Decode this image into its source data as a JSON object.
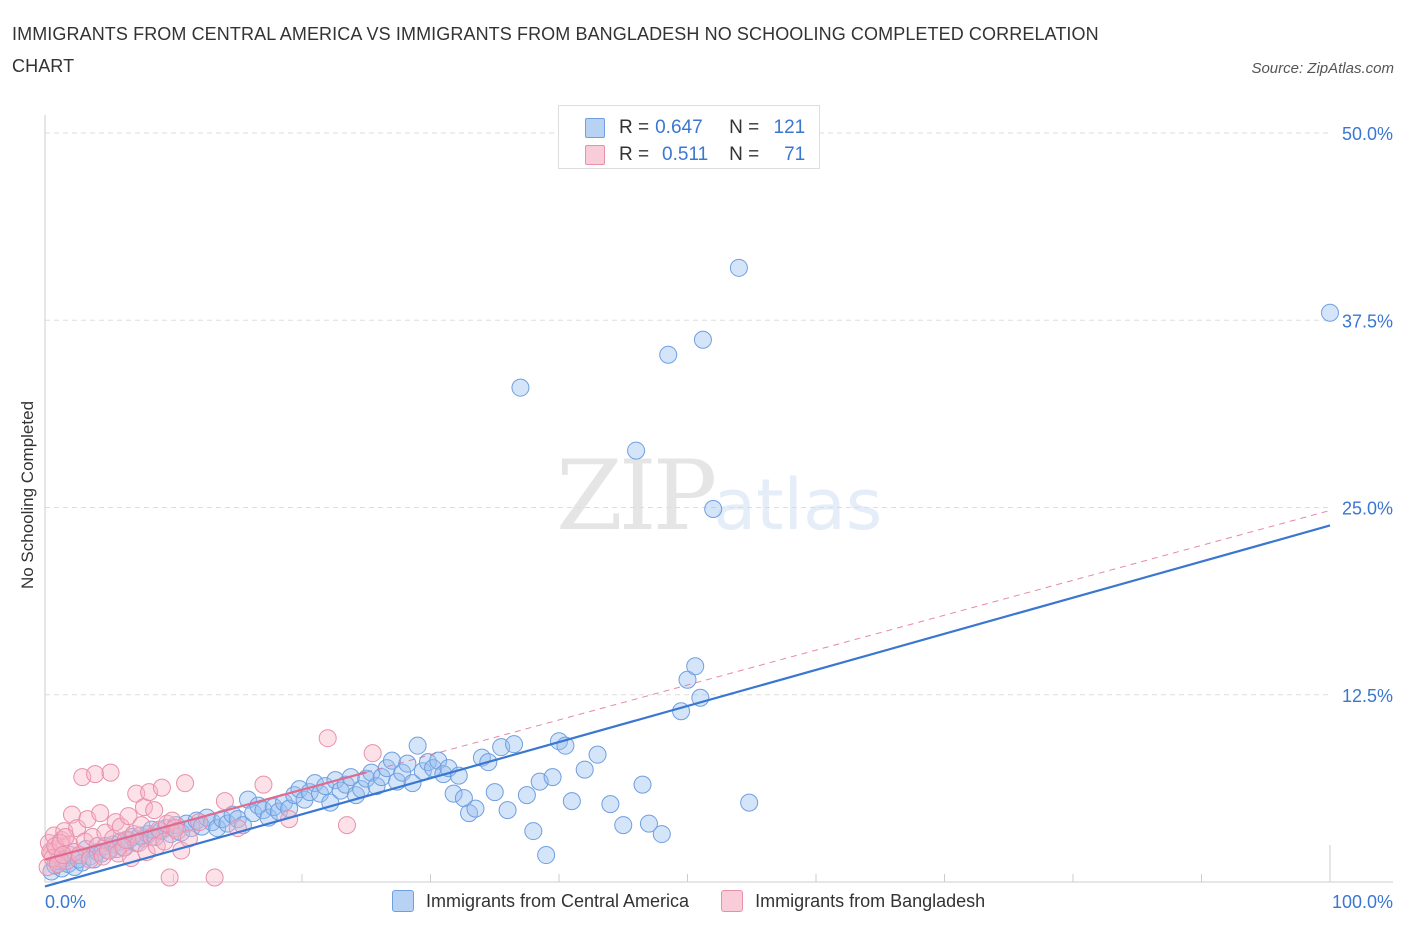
{
  "title": "IMMIGRANTS FROM CENTRAL AMERICA VS IMMIGRANTS FROM BANGLADESH NO SCHOOLING COMPLETED CORRELATION CHART",
  "source": "Source: ZipAtlas.com",
  "watermark": {
    "zip": "ZIP",
    "atlas": "atlas"
  },
  "stats": [
    {
      "r_label": "R =",
      "r": "0.647",
      "n_label": "N =",
      "n": "121",
      "color": "#a8c8f0",
      "border": "#6f9fe0"
    },
    {
      "r_label": "R =",
      "r": "0.511",
      "n_label": "N =",
      "n": "71",
      "color": "#f8c0d0",
      "border": "#e890aa"
    }
  ],
  "chart_data": {
    "type": "scatter",
    "ylabel": "No Schooling Completed",
    "xlim": [
      0,
      100
    ],
    "ylim": [
      0,
      50
    ],
    "x_tick_labels": [
      {
        "value": 0,
        "label": "0.0%"
      },
      {
        "value": 100,
        "label": "100.0%"
      }
    ],
    "y_tick_labels": [
      {
        "value": 12.5,
        "label": "12.5%"
      },
      {
        "value": 25,
        "label": "25.0%"
      },
      {
        "value": 37.5,
        "label": "37.5%"
      },
      {
        "value": 50,
        "label": "50.0%"
      }
    ],
    "grid": true,
    "legend_position": "bottom",
    "series": [
      {
        "name": "Immigrants from Central America",
        "color": "#6f9fe0",
        "fill": "rgba(150,190,240,0.40)",
        "trend": {
          "x": [
            0,
            100
          ],
          "y": [
            -0.3,
            23.8
          ],
          "style": "solid",
          "color": "#3a77d0"
        },
        "points": [
          [
            0.5,
            0.7
          ],
          [
            0.8,
            1.1
          ],
          [
            1.0,
            1.4
          ],
          [
            1.3,
            0.9
          ],
          [
            1.5,
            1.6
          ],
          [
            1.8,
            1.2
          ],
          [
            2.0,
            1.8
          ],
          [
            2.3,
            1.0
          ],
          [
            2.6,
            1.5
          ],
          [
            2.9,
            1.3
          ],
          [
            3.2,
            2.2
          ],
          [
            3.5,
            1.7
          ],
          [
            3.8,
            1.5
          ],
          [
            4.1,
            2.0
          ],
          [
            4.4,
            1.9
          ],
          [
            4.7,
            2.4
          ],
          [
            5.0,
            2.1
          ],
          [
            5.3,
            2.5
          ],
          [
            5.6,
            2.2
          ],
          [
            5.9,
            2.7
          ],
          [
            6.2,
            2.3
          ],
          [
            6.5,
            2.8
          ],
          [
            6.8,
            3.0
          ],
          [
            7.1,
            2.6
          ],
          [
            7.4,
            3.1
          ],
          [
            7.7,
            2.9
          ],
          [
            8.0,
            3.2
          ],
          [
            8.3,
            3.5
          ],
          [
            8.6,
            3.0
          ],
          [
            9.0,
            3.4
          ],
          [
            9.4,
            3.6
          ],
          [
            9.8,
            3.2
          ],
          [
            10.2,
            3.8
          ],
          [
            10.6,
            3.3
          ],
          [
            11.0,
            3.9
          ],
          [
            11.4,
            3.6
          ],
          [
            11.8,
            4.1
          ],
          [
            12.2,
            3.7
          ],
          [
            12.6,
            4.3
          ],
          [
            13.0,
            4.0
          ],
          [
            13.4,
            3.6
          ],
          [
            13.8,
            4.2
          ],
          [
            14.2,
            3.9
          ],
          [
            14.6,
            4.5
          ],
          [
            15.0,
            4.2
          ],
          [
            15.4,
            3.8
          ],
          [
            15.8,
            5.5
          ],
          [
            16.2,
            4.6
          ],
          [
            16.6,
            5.1
          ],
          [
            17.0,
            4.8
          ],
          [
            17.4,
            4.3
          ],
          [
            17.8,
            5.0
          ],
          [
            18.2,
            4.7
          ],
          [
            18.6,
            5.3
          ],
          [
            19.0,
            4.9
          ],
          [
            19.4,
            5.8
          ],
          [
            19.8,
            6.2
          ],
          [
            20.2,
            5.5
          ],
          [
            20.6,
            6.0
          ],
          [
            21.0,
            6.6
          ],
          [
            21.4,
            5.9
          ],
          [
            21.8,
            6.4
          ],
          [
            22.2,
            5.3
          ],
          [
            22.6,
            6.8
          ],
          [
            23.0,
            6.1
          ],
          [
            23.4,
            6.5
          ],
          [
            23.8,
            7.0
          ],
          [
            24.2,
            5.8
          ],
          [
            24.6,
            6.2
          ],
          [
            25.0,
            6.9
          ],
          [
            25.4,
            7.3
          ],
          [
            25.8,
            6.4
          ],
          [
            26.2,
            7.0
          ],
          [
            26.6,
            7.6
          ],
          [
            27.0,
            8.1
          ],
          [
            27.4,
            6.7
          ],
          [
            27.8,
            7.3
          ],
          [
            28.2,
            7.9
          ],
          [
            28.6,
            6.6
          ],
          [
            29.0,
            9.1
          ],
          [
            29.4,
            7.4
          ],
          [
            29.8,
            8.0
          ],
          [
            30.2,
            7.6
          ],
          [
            30.6,
            8.1
          ],
          [
            31.0,
            7.2
          ],
          [
            31.4,
            7.6
          ],
          [
            31.8,
            5.9
          ],
          [
            32.2,
            7.1
          ],
          [
            32.6,
            5.6
          ],
          [
            33.0,
            4.6
          ],
          [
            33.5,
            4.9
          ],
          [
            34.0,
            8.3
          ],
          [
            34.5,
            8.0
          ],
          [
            35.0,
            6.0
          ],
          [
            35.5,
            9.0
          ],
          [
            36.0,
            4.8
          ],
          [
            36.5,
            9.2
          ],
          [
            37.0,
            33.0
          ],
          [
            37.5,
            5.8
          ],
          [
            38.0,
            3.4
          ],
          [
            38.5,
            6.7
          ],
          [
            39.0,
            1.8
          ],
          [
            39.5,
            7.0
          ],
          [
            40.0,
            9.4
          ],
          [
            40.5,
            9.1
          ],
          [
            41.0,
            5.4
          ],
          [
            42.0,
            7.5
          ],
          [
            43.0,
            8.5
          ],
          [
            44.0,
            5.2
          ],
          [
            45.0,
            3.8
          ],
          [
            46.0,
            28.8
          ],
          [
            46.5,
            6.5
          ],
          [
            47.0,
            3.9
          ],
          [
            48.0,
            3.2
          ],
          [
            48.5,
            35.2
          ],
          [
            49.5,
            11.4
          ],
          [
            50.0,
            13.5
          ],
          [
            50.6,
            14.4
          ],
          [
            51.0,
            12.3
          ],
          [
            51.2,
            36.2
          ],
          [
            52.0,
            24.9
          ],
          [
            54.0,
            41.0
          ],
          [
            54.8,
            5.3
          ],
          [
            100.0,
            38.0
          ]
        ]
      },
      {
        "name": "Immigrants from Bangladesh",
        "color": "#e890aa",
        "fill": "rgba(248,180,200,0.40)",
        "trend": {
          "x": [
            0,
            100
          ],
          "y": [
            1.5,
            24.8
          ],
          "solid_until": 25,
          "style": "dashed-after",
          "color": "#e06b90"
        },
        "points": [
          [
            0.3,
            2.6
          ],
          [
            0.5,
            1.9
          ],
          [
            0.7,
            3.1
          ],
          [
            0.9,
            2.2
          ],
          [
            1.1,
            1.6
          ],
          [
            1.3,
            2.8
          ],
          [
            1.5,
            3.4
          ],
          [
            1.7,
            1.4
          ],
          [
            1.9,
            2.5
          ],
          [
            2.1,
            4.5
          ],
          [
            2.3,
            2.0
          ],
          [
            2.5,
            3.6
          ],
          [
            2.7,
            1.8
          ],
          [
            2.9,
            7.0
          ],
          [
            3.1,
            2.7
          ],
          [
            3.3,
            4.2
          ],
          [
            3.5,
            1.5
          ],
          [
            3.7,
            3.0
          ],
          [
            3.9,
            7.2
          ],
          [
            4.1,
            2.4
          ],
          [
            4.3,
            4.6
          ],
          [
            4.5,
            1.7
          ],
          [
            4.7,
            3.3
          ],
          [
            4.9,
            2.1
          ],
          [
            5.1,
            7.3
          ],
          [
            5.3,
            2.9
          ],
          [
            5.5,
            4.0
          ],
          [
            5.7,
            1.9
          ],
          [
            5.9,
            3.7
          ],
          [
            6.1,
            2.3
          ],
          [
            6.3,
            2.8
          ],
          [
            6.5,
            4.4
          ],
          [
            6.7,
            1.6
          ],
          [
            6.9,
            3.2
          ],
          [
            7.1,
            5.9
          ],
          [
            7.3,
            2.6
          ],
          [
            7.5,
            3.8
          ],
          [
            7.7,
            5.0
          ],
          [
            7.9,
            2.0
          ],
          [
            8.1,
            6.0
          ],
          [
            8.3,
            3.0
          ],
          [
            8.5,
            4.8
          ],
          [
            8.7,
            2.4
          ],
          [
            8.9,
            3.5
          ],
          [
            9.1,
            6.3
          ],
          [
            9.3,
            2.7
          ],
          [
            9.5,
            3.9
          ],
          [
            9.7,
            0.3
          ],
          [
            9.9,
            4.1
          ],
          [
            10.1,
            3.6
          ],
          [
            10.3,
            3.4
          ],
          [
            10.6,
            2.1
          ],
          [
            10.9,
            6.6
          ],
          [
            11.2,
            2.9
          ],
          [
            12.0,
            4.0
          ],
          [
            13.2,
            0.3
          ],
          [
            14.0,
            5.4
          ],
          [
            15.0,
            3.6
          ],
          [
            17.0,
            6.5
          ],
          [
            19.0,
            4.2
          ],
          [
            22.0,
            9.6
          ],
          [
            23.5,
            3.8
          ],
          [
            25.5,
            8.6
          ],
          [
            0.2,
            1.0
          ],
          [
            0.4,
            2.0
          ],
          [
            0.6,
            1.6
          ],
          [
            0.8,
            2.4
          ],
          [
            1.0,
            1.2
          ],
          [
            1.2,
            2.6
          ],
          [
            1.4,
            1.8
          ],
          [
            1.6,
            3.0
          ]
        ]
      }
    ]
  }
}
